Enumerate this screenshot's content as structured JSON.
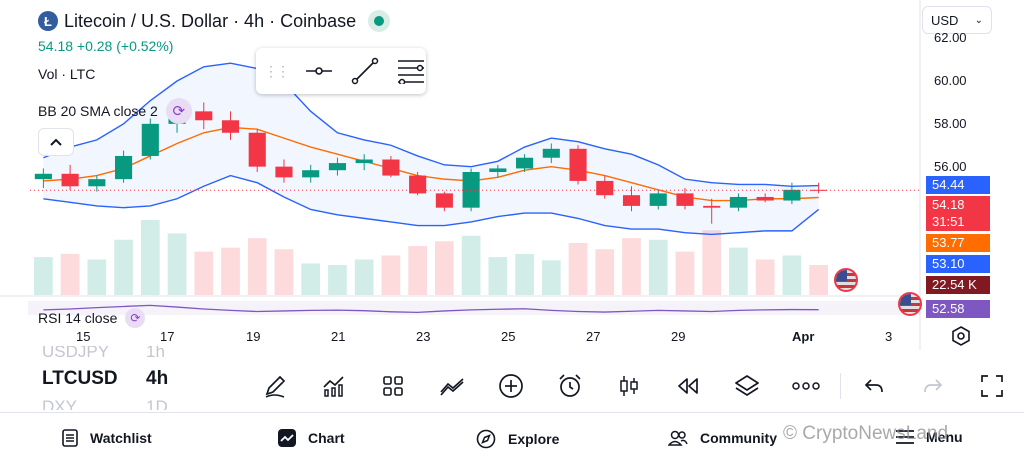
{
  "header": {
    "title": "Litecoin / U.S. Dollar · 4h · Coinbase",
    "logo_letter": "Ł",
    "price_change": "54.18  +0.28 (+0.52%)",
    "volume_label": "Vol · LTC",
    "bb_label": "BB 20 SMA close 2",
    "currency": "USD",
    "rsi_label": "RSI 14 close"
  },
  "price_axis": {
    "labels": [
      "62.00",
      "60.00",
      "58.00",
      "56.00"
    ],
    "tags": [
      {
        "value": "54.44",
        "color": "#2962ff"
      },
      {
        "value": "54.18",
        "color": "#f23645"
      },
      {
        "value": "31:51",
        "color": "#f23645"
      },
      {
        "value": "53.77",
        "color": "#ff6d00"
      },
      {
        "value": "53.10",
        "color": "#2962ff"
      },
      {
        "value": "22.54 K",
        "color": "#801922"
      },
      {
        "value": "52.58",
        "color": "#7e57c2"
      }
    ]
  },
  "date_axis": [
    "15",
    "17",
    "19",
    "21",
    "23",
    "25",
    "27",
    "29",
    "Apr",
    "3"
  ],
  "symbols": [
    {
      "symbol": "USDJPY",
      "interval": "1h"
    },
    {
      "symbol": "LTCUSD",
      "interval": "4h"
    },
    {
      "symbol": "DXY",
      "interval": "1D"
    }
  ],
  "bottom_nav": {
    "watchlist": "Watchlist",
    "chart": "Chart",
    "explore": "Explore",
    "community": "Community",
    "menu": "Menu"
  },
  "watermark": "© CryptoNewsLand",
  "colors": {
    "up": "#089981",
    "down": "#f23645",
    "band": "#2962ff",
    "basis": "#ff6d00",
    "rsi": "#7e57c2"
  },
  "chart_data": {
    "type": "candlestick",
    "symbol": "LTCUSD",
    "interval": "4h",
    "ylim": [
      51.5,
      62.6
    ],
    "last_price": 54.18,
    "indicators": {
      "bb_upper_last": 54.44,
      "bb_basis_last": 53.77,
      "bb_lower_last": 53.1,
      "volume_last": "22.54 K",
      "rsi_last": 52.58
    },
    "bb_upper": [
      56.0,
      56.6,
      57.0,
      57.9,
      59.2,
      60.3,
      61.1,
      61.3,
      61.0,
      60.2,
      58.6,
      57.4,
      57.0,
      56.7,
      56.1,
      55.6,
      55.5,
      55.8,
      56.6,
      57.1,
      56.9,
      56.5,
      56.2,
      55.6,
      54.8,
      54.6,
      54.5,
      54.5,
      54.4,
      54.44
    ],
    "bb_basis": [
      54.7,
      54.8,
      55.0,
      55.4,
      56.1,
      56.8,
      57.4,
      57.7,
      57.6,
      57.1,
      56.6,
      56.2,
      55.8,
      55.4,
      55.0,
      54.8,
      54.7,
      54.9,
      55.3,
      55.5,
      55.3,
      55.0,
      54.6,
      54.2,
      53.8,
      53.6,
      53.6,
      53.7,
      53.7,
      53.77
    ],
    "bb_lower": [
      53.7,
      53.5,
      53.3,
      53.2,
      53.3,
      53.7,
      54.4,
      55.0,
      54.6,
      53.8,
      53.1,
      52.8,
      52.6,
      52.4,
      52.2,
      52.2,
      52.4,
      52.7,
      52.9,
      52.9,
      52.6,
      52.2,
      52.0,
      52.0,
      51.8,
      51.7,
      51.8,
      51.9,
      51.9,
      53.1
    ],
    "candles": [
      {
        "o": 54.8,
        "h": 55.4,
        "l": 54.3,
        "c": 55.1
      },
      {
        "o": 55.1,
        "h": 55.6,
        "l": 54.2,
        "c": 54.4
      },
      {
        "o": 54.4,
        "h": 55.0,
        "l": 54.1,
        "c": 54.8
      },
      {
        "o": 54.8,
        "h": 56.4,
        "l": 54.6,
        "c": 56.1
      },
      {
        "o": 56.1,
        "h": 58.2,
        "l": 55.9,
        "c": 57.9
      },
      {
        "o": 57.9,
        "h": 58.9,
        "l": 57.4,
        "c": 58.6
      },
      {
        "o": 58.6,
        "h": 59.1,
        "l": 57.6,
        "c": 58.1
      },
      {
        "o": 58.1,
        "h": 58.6,
        "l": 57.0,
        "c": 57.4
      },
      {
        "o": 57.4,
        "h": 57.6,
        "l": 55.2,
        "c": 55.5
      },
      {
        "o": 55.5,
        "h": 55.9,
        "l": 54.6,
        "c": 54.9
      },
      {
        "o": 54.9,
        "h": 55.6,
        "l": 54.6,
        "c": 55.3
      },
      {
        "o": 55.3,
        "h": 56.0,
        "l": 55.0,
        "c": 55.7
      },
      {
        "o": 55.7,
        "h": 56.2,
        "l": 55.3,
        "c": 55.9
      },
      {
        "o": 55.9,
        "h": 56.1,
        "l": 54.9,
        "c": 55.0
      },
      {
        "o": 55.0,
        "h": 55.2,
        "l": 53.9,
        "c": 54.0
      },
      {
        "o": 54.0,
        "h": 54.1,
        "l": 53.0,
        "c": 53.2
      },
      {
        "o": 53.2,
        "h": 55.4,
        "l": 53.0,
        "c": 55.2
      },
      {
        "o": 55.2,
        "h": 55.6,
        "l": 54.9,
        "c": 55.4
      },
      {
        "o": 55.4,
        "h": 56.2,
        "l": 55.2,
        "c": 56.0
      },
      {
        "o": 56.0,
        "h": 56.8,
        "l": 55.7,
        "c": 56.5
      },
      {
        "o": 56.5,
        "h": 56.7,
        "l": 54.5,
        "c": 54.7
      },
      {
        "o": 54.7,
        "h": 55.0,
        "l": 53.7,
        "c": 53.9
      },
      {
        "o": 53.9,
        "h": 54.4,
        "l": 53.0,
        "c": 53.3
      },
      {
        "o": 53.3,
        "h": 54.2,
        "l": 53.1,
        "c": 54.0
      },
      {
        "o": 54.0,
        "h": 54.3,
        "l": 53.1,
        "c": 53.3
      },
      {
        "o": 53.3,
        "h": 53.7,
        "l": 52.3,
        "c": 53.2
      },
      {
        "o": 53.2,
        "h": 54.0,
        "l": 53.0,
        "c": 53.8
      },
      {
        "o": 53.8,
        "h": 54.0,
        "l": 53.5,
        "c": 53.6
      },
      {
        "o": 53.6,
        "h": 54.6,
        "l": 53.4,
        "c": 54.2
      },
      {
        "o": 54.2,
        "h": 54.6,
        "l": 54.0,
        "c": 54.18
      }
    ],
    "volume": [
      48,
      52,
      45,
      70,
      95,
      78,
      55,
      60,
      72,
      58,
      40,
      38,
      45,
      50,
      62,
      68,
      75,
      48,
      52,
      44,
      66,
      58,
      72,
      70,
      55,
      82,
      60,
      45,
      50,
      38
    ],
    "rsi": [
      52,
      55,
      60,
      64,
      68,
      62,
      55,
      50,
      46,
      48,
      50,
      51,
      49,
      45,
      43,
      48,
      52,
      54,
      56,
      50,
      46,
      44,
      47,
      50,
      48,
      46,
      50,
      52,
      53,
      52.58
    ]
  }
}
